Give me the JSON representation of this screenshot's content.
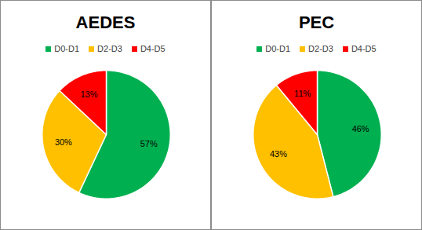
{
  "chart_data": [
    {
      "type": "pie",
      "title": "AEDES",
      "categories": [
        "D0-D1",
        "D2-D3",
        "D4-D5"
      ],
      "values": [
        57,
        30,
        13
      ],
      "value_labels": [
        "57%",
        "30%",
        "13%"
      ],
      "colors": [
        "#00b050",
        "#ffc000",
        "#ff0000"
      ],
      "data_labels": true,
      "legend": "top"
    },
    {
      "type": "pie",
      "title": "PEC",
      "categories": [
        "D0-D1",
        "D2-D3",
        "D4-D5"
      ],
      "values": [
        46,
        43,
        11
      ],
      "value_labels": [
        "46%",
        "43%",
        "11%"
      ],
      "colors": [
        "#00b050",
        "#ffc000",
        "#ff0000"
      ],
      "data_labels": true,
      "legend": "top"
    }
  ]
}
